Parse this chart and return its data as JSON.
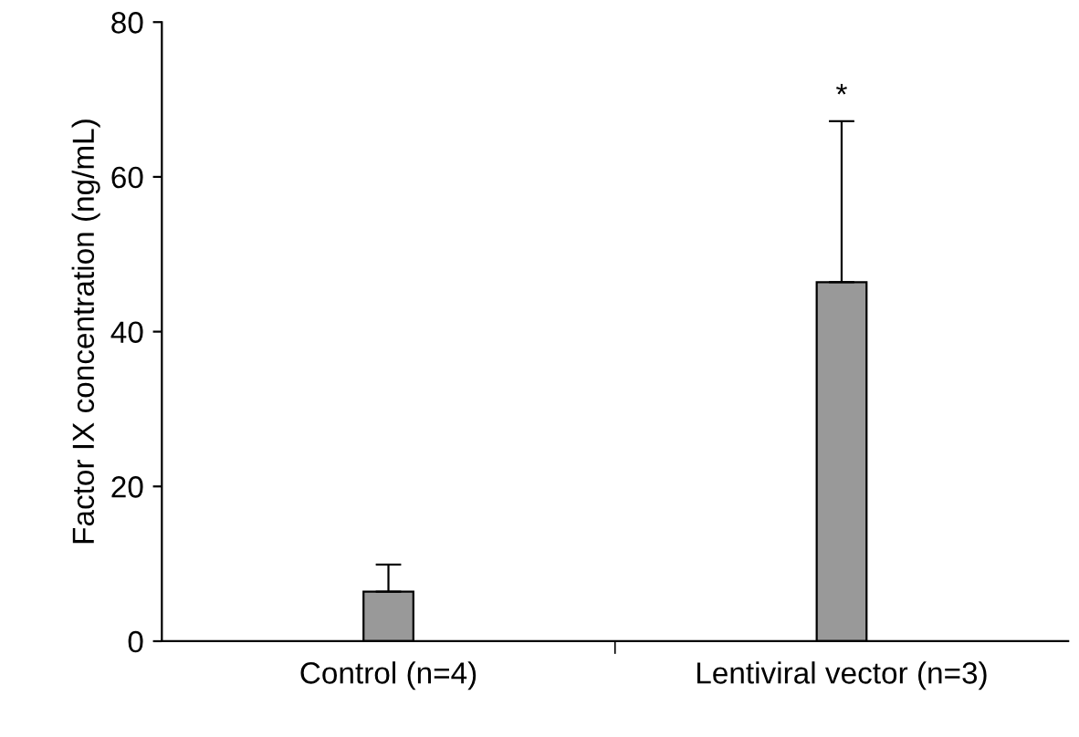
{
  "chart_data": {
    "type": "bar",
    "ylabel": "Factor IX concentration (ng/mL)",
    "categories": [
      "Control (n=4)",
      "Lentiviral vector (n=3)"
    ],
    "values": [
      6.4,
      46.4
    ],
    "errors": [
      [
        6.4,
        9.9
      ],
      [
        46.4,
        67.2
      ]
    ],
    "color": "#999999",
    "ylim": [
      0,
      80
    ],
    "yticks": [
      0,
      20,
      40,
      60,
      80
    ],
    "grid": false,
    "legend": false,
    "annotations": [
      "*"
    ]
  }
}
